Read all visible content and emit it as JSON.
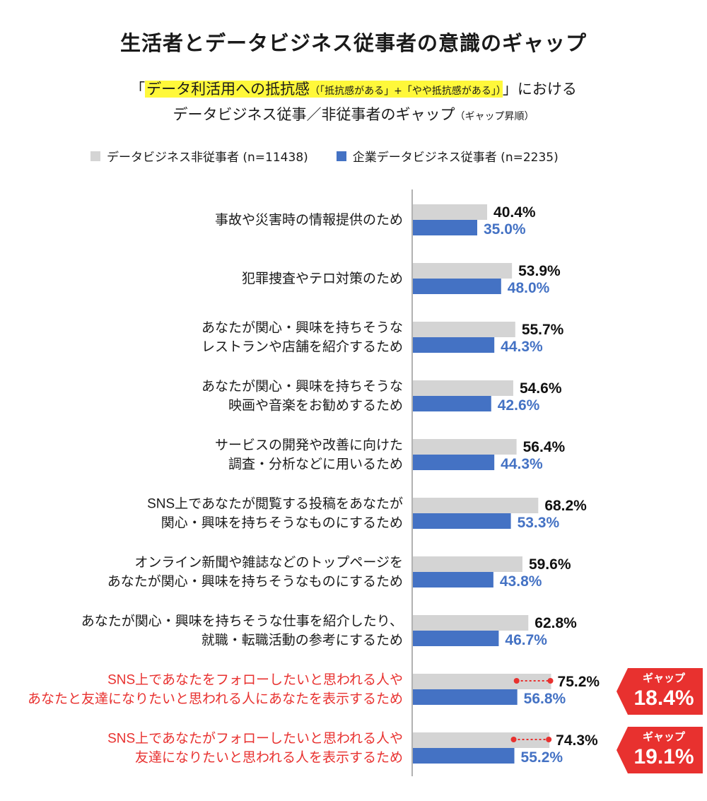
{
  "title": "生活者とデータビジネス従事者の意識のギャップ",
  "subtitle": {
    "quote_open": "「",
    "highlight": "データ利活用への抵抗感",
    "note": "（「抵抗感がある」+「やや抵抗感がある」）",
    "quote_close": "」",
    "suffix": "における",
    "line2": "データビジネス従事／非従事者のギャップ",
    "line2_note": "（ギャップ昇順）"
  },
  "legend": [
    {
      "label": "データビジネス非従事者 (n=11438)",
      "color": "#d4d4d4"
    },
    {
      "label": "企業データビジネス従事者 (n=2235)",
      "color": "#4472c4"
    }
  ],
  "colors": {
    "gray": "#d4d4d4",
    "blue": "#4472c4",
    "red": "#e8312f",
    "label_red": "#e8312f",
    "axis": "#999999"
  },
  "chart_data": {
    "type": "bar",
    "orientation": "horizontal",
    "categories": [
      [
        "事故や災害時の情報提供のため"
      ],
      [
        "犯罪捜査やテロ対策のため"
      ],
      [
        "あなたが関心・興味を持ちそうな",
        "レストランや店舗を紹介するため"
      ],
      [
        "あなたが関心・興味を持ちそうな",
        "映画や音楽をお勧めするため"
      ],
      [
        "サービスの開発や改善に向けた",
        "調査・分析などに用いるため"
      ],
      [
        "SNS上であなたが閲覧する投稿をあなたが",
        "関心・興味を持ちそうなものにするため"
      ],
      [
        "オンライン新聞や雑誌などのトップページを",
        "あなたが関心・興味を持ちそうなものにするため"
      ],
      [
        "あなたが関心・興味を持ちそうな仕事を紹介したり、",
        "就職・転職活動の参考にするため"
      ],
      [
        "SNS上であなたをフォローしたいと思われる人や",
        "あなたと友達になりたいと思われる人にあなたを表示するため"
      ],
      [
        "SNS上であなたがフォローしたいと思われる人や",
        "友達になりたいと思われる人を表示するため"
      ]
    ],
    "highlighted": [
      false,
      false,
      false,
      false,
      false,
      false,
      false,
      false,
      true,
      true
    ],
    "series": [
      {
        "name": "データビジネス非従事者 (n=11438)",
        "values": [
          40.4,
          53.9,
          55.7,
          54.6,
          56.4,
          68.2,
          59.6,
          62.8,
          75.2,
          74.3
        ]
      },
      {
        "name": "企業データビジネス従事者 (n=2235)",
        "values": [
          35.0,
          48.0,
          44.3,
          42.6,
          44.3,
          53.3,
          43.8,
          46.7,
          56.8,
          55.2
        ]
      }
    ],
    "gaps": [
      {
        "index": 8,
        "label": "ギャップ",
        "value": "18.4%"
      },
      {
        "index": 9,
        "label": "ギャップ",
        "value": "19.1%"
      }
    ],
    "value_suffix": "%",
    "xlim": [
      0,
      100
    ]
  }
}
